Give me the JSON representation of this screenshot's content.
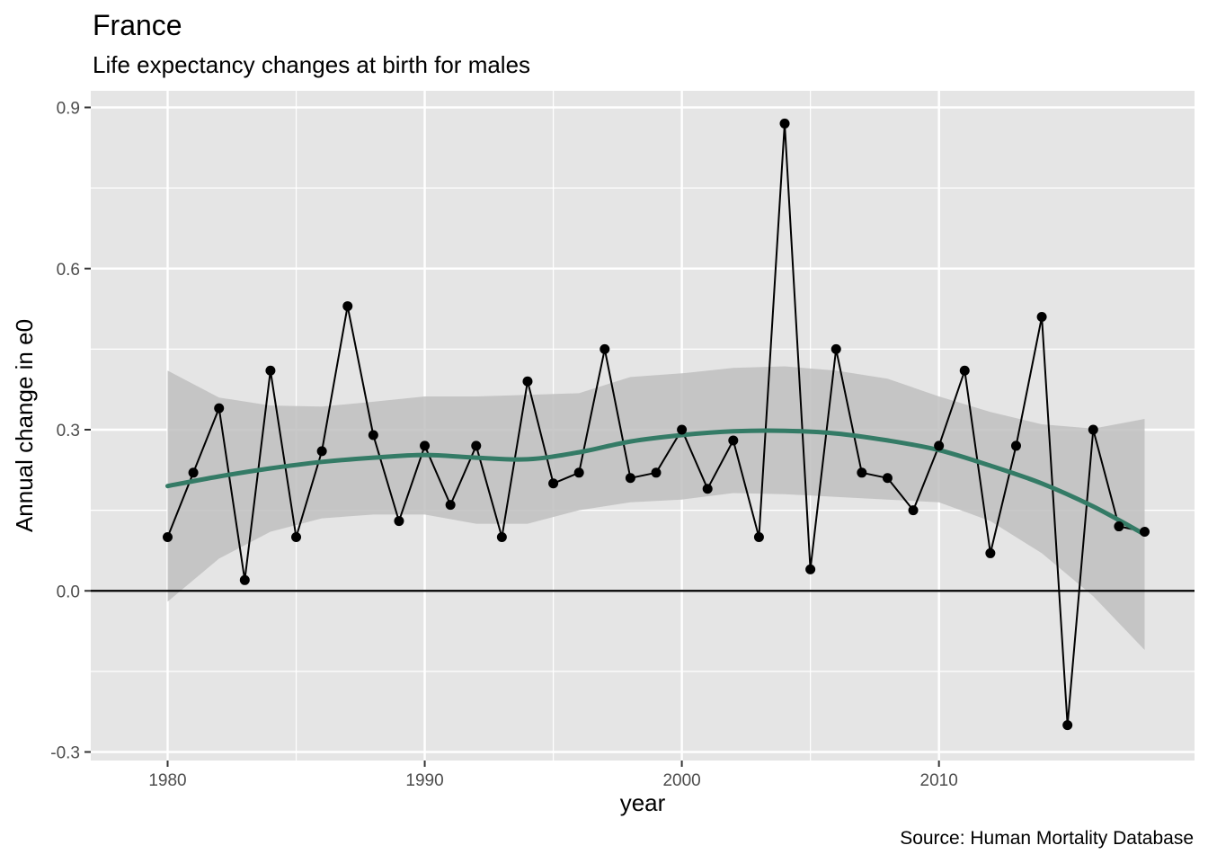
{
  "chart_data": {
    "type": "line",
    "title": "France",
    "subtitle": "Life expectancy changes at birth for males",
    "xlabel": "year",
    "ylabel": "Annual change in e0",
    "caption": "Source: Human Mortality Database",
    "xlim": [
      1977,
      2019.7
    ],
    "ylim": [
      -0.3,
      0.9
    ],
    "x_ticks": [
      1980,
      1990,
      2000,
      2010
    ],
    "x_tick_labels": [
      "1980",
      "1990",
      "2000",
      "2010"
    ],
    "y_ticks": [
      -0.3,
      0.0,
      0.3,
      0.6,
      0.9
    ],
    "y_tick_labels": [
      "-0.3",
      "0.0",
      "0.3",
      "0.6",
      "0.9"
    ],
    "grid": true,
    "reference_line_y": 0.0,
    "colors": {
      "panel": "#e5e5e5",
      "grid": "#ffffff",
      "series": "#000000",
      "smooth": "#347b66",
      "ribbon": "#bfbfbf"
    },
    "series": [
      {
        "x": [
          1980,
          1981,
          1982,
          1983,
          1984,
          1985,
          1986,
          1987,
          1988,
          1989,
          1990,
          1991,
          1992,
          1993,
          1994,
          1995,
          1996,
          1997,
          1998,
          1999,
          2000,
          2001,
          2002,
          2003,
          2004,
          2005,
          2006,
          2007,
          2008,
          2009,
          2010,
          2011,
          2012,
          2013,
          2014,
          2015,
          2016,
          2017,
          2018
        ],
        "values": [
          0.1,
          0.22,
          0.34,
          0.02,
          0.41,
          0.1,
          0.26,
          0.53,
          0.29,
          0.13,
          0.27,
          0.16,
          0.27,
          0.1,
          0.39,
          0.2,
          0.22,
          0.45,
          0.21,
          0.22,
          0.3,
          0.19,
          0.28,
          0.1,
          0.87,
          0.04,
          0.45,
          0.22,
          0.21,
          0.15,
          0.27,
          0.41,
          0.07,
          0.27,
          0.51,
          -0.25,
          0.3,
          0.12,
          0.11
        ]
      }
    ],
    "smooth": {
      "x": [
        1980,
        1982,
        1984,
        1986,
        1988,
        1990,
        1992,
        1994,
        1996,
        1998,
        2000,
        2002,
        2004,
        2006,
        2008,
        2010,
        2012,
        2014,
        2016,
        2018
      ],
      "fit": [
        0.195,
        0.213,
        0.228,
        0.24,
        0.248,
        0.253,
        0.248,
        0.245,
        0.258,
        0.278,
        0.29,
        0.297,
        0.298,
        0.293,
        0.28,
        0.262,
        0.233,
        0.2,
        0.157,
        0.105
      ],
      "lower": [
        -0.02,
        0.06,
        0.11,
        0.135,
        0.142,
        0.142,
        0.125,
        0.125,
        0.15,
        0.165,
        0.17,
        0.182,
        0.18,
        0.175,
        0.17,
        0.165,
        0.13,
        0.07,
        -0.01,
        -0.11
      ],
      "upper": [
        0.41,
        0.36,
        0.345,
        0.343,
        0.352,
        0.362,
        0.362,
        0.365,
        0.368,
        0.398,
        0.405,
        0.415,
        0.418,
        0.41,
        0.395,
        0.362,
        0.333,
        0.31,
        0.302,
        0.32
      ]
    }
  }
}
